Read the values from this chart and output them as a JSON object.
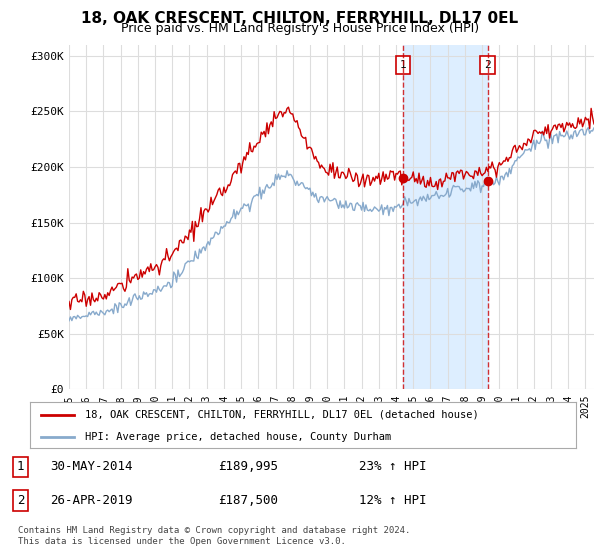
{
  "title": "18, OAK CRESCENT, CHILTON, FERRYHILL, DL17 0EL",
  "subtitle": "Price paid vs. HM Land Registry's House Price Index (HPI)",
  "ylabel_ticks": [
    "£0",
    "£50K",
    "£100K",
    "£150K",
    "£200K",
    "£250K",
    "£300K"
  ],
  "ytick_values": [
    0,
    50000,
    100000,
    150000,
    200000,
    250000,
    300000
  ],
  "ylim": [
    0,
    310000
  ],
  "xlim_start": 1995.0,
  "xlim_end": 2025.5,
  "red_line_color": "#cc0000",
  "blue_line_color": "#88aacc",
  "background_color": "#ffffff",
  "plot_bg_color": "#ffffff",
  "grid_color": "#dddddd",
  "sale1_x": 2014.41,
  "sale1_y": 189995,
  "sale2_x": 2019.32,
  "sale2_y": 187500,
  "vline_color": "#cc0000",
  "shade_color": "#ddeeff",
  "legend_line1": "18, OAK CRESCENT, CHILTON, FERRYHILL, DL17 0EL (detached house)",
  "legend_line2": "HPI: Average price, detached house, County Durham",
  "table_row1_num": "1",
  "table_row1_date": "30-MAY-2014",
  "table_row1_price": "£189,995",
  "table_row1_hpi": "23% ↑ HPI",
  "table_row2_num": "2",
  "table_row2_date": "26-APR-2019",
  "table_row2_price": "£187,500",
  "table_row2_hpi": "12% ↑ HPI",
  "footer": "Contains HM Land Registry data © Crown copyright and database right 2024.\nThis data is licensed under the Open Government Licence v3.0."
}
